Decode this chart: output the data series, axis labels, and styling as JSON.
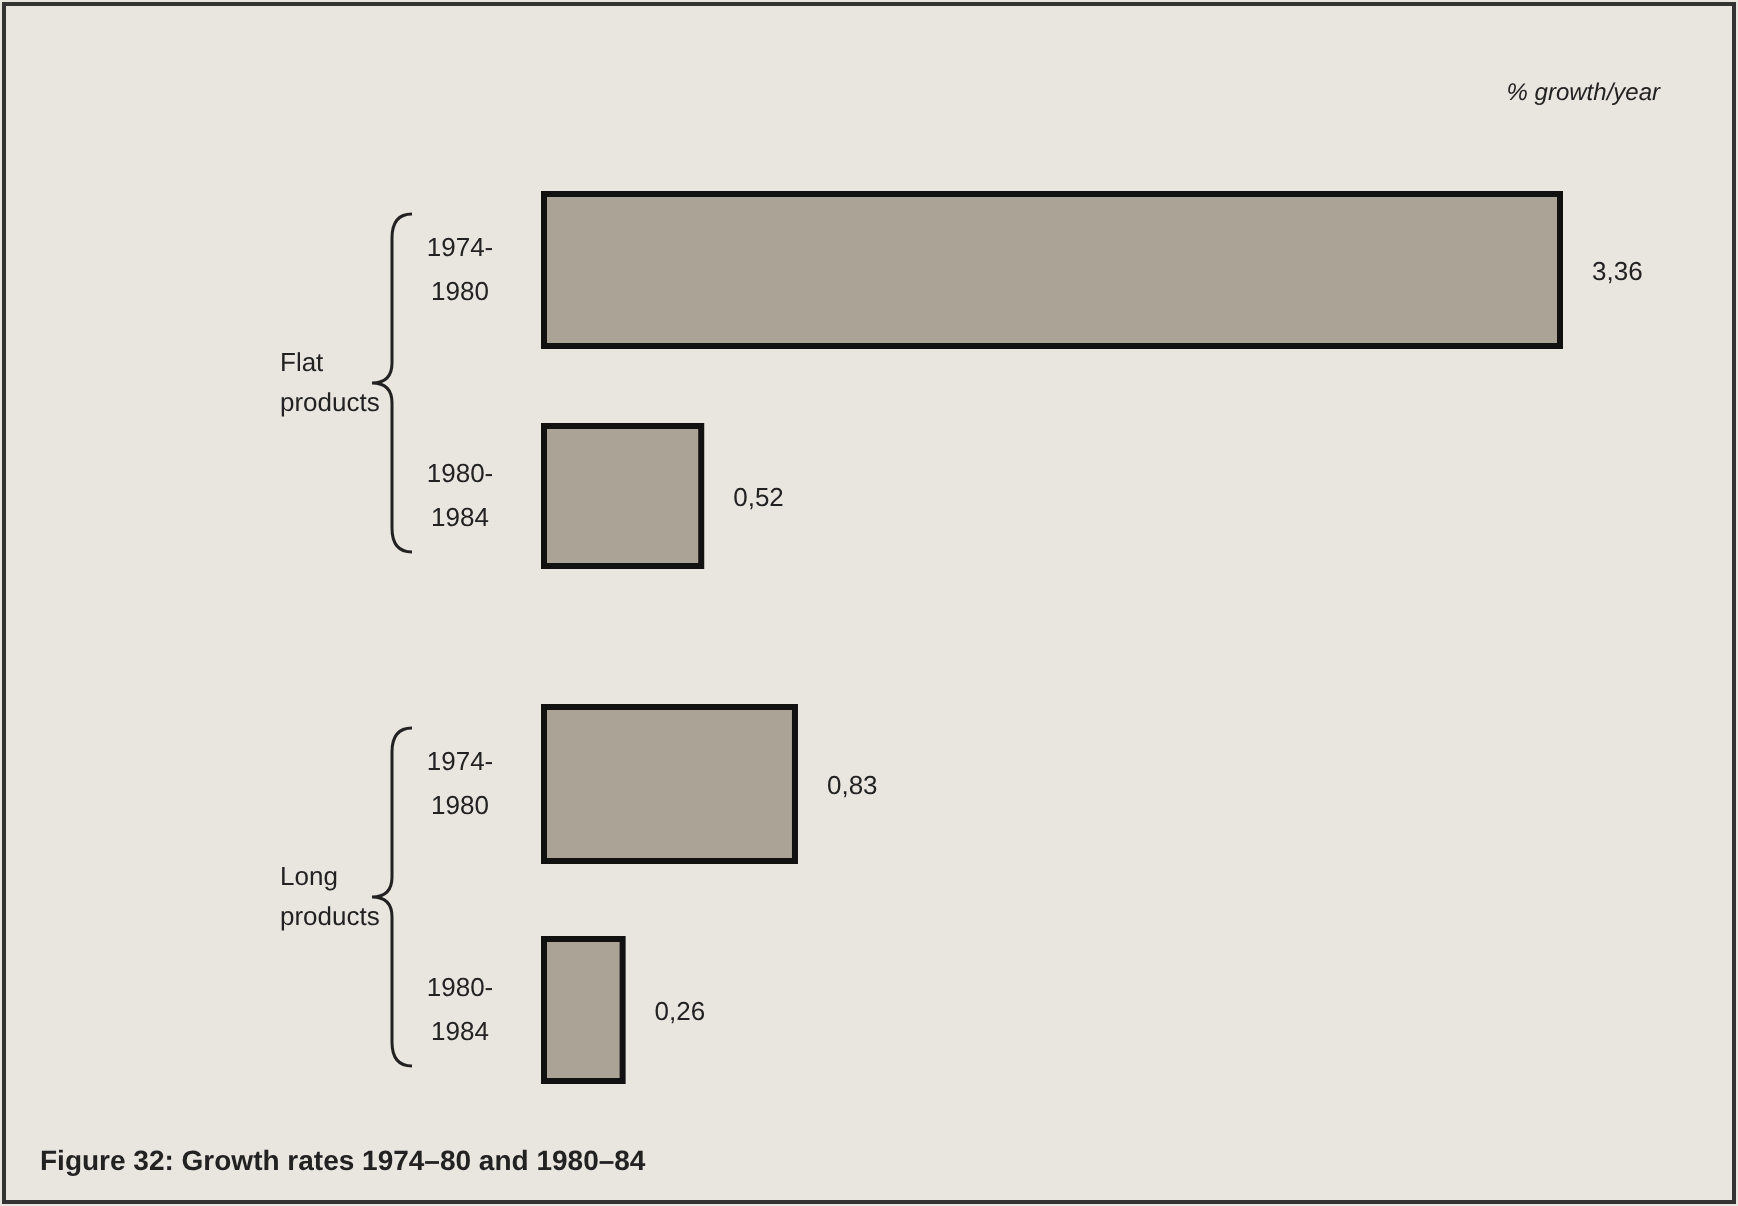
{
  "chart_data": {
    "type": "bar",
    "orientation": "horizontal",
    "title": "Figure 32:  Growth rates 1974–80 and 1980–84",
    "xlabel": "% growth/year",
    "categories": [
      "1974-1980",
      "1980-1984",
      "1974-1980",
      "1980-1984"
    ],
    "values": [
      3.36,
      0.52,
      0.83,
      0.26
    ],
    "value_labels": [
      "3,36",
      "0,52",
      "0,83",
      "0,26"
    ],
    "color": "#aaa396",
    "annotations": [
      "Flat products",
      "Long products"
    ]
  }
}
